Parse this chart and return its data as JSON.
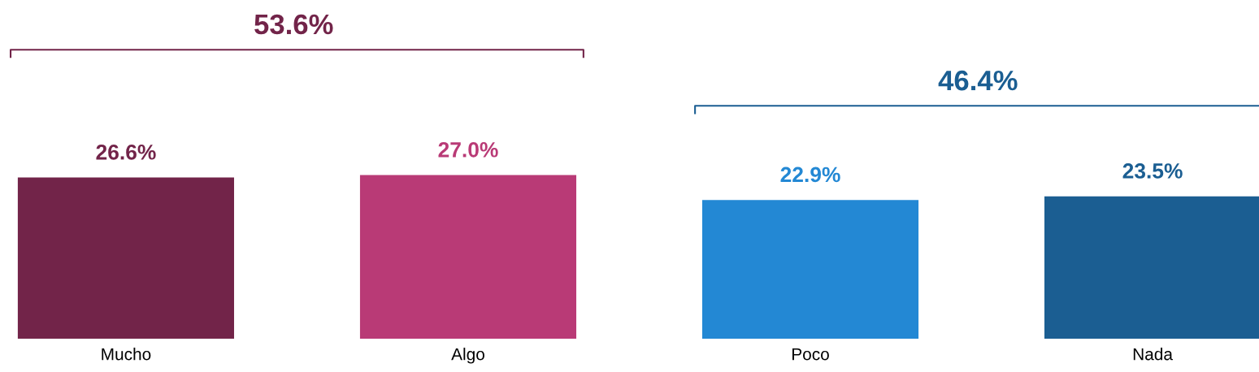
{
  "chart_data": {
    "type": "bar",
    "categories": [
      "Mucho",
      "Algo",
      "Poco",
      "Nada"
    ],
    "values": [
      26.6,
      27.0,
      22.9,
      23.5
    ],
    "colors": [
      "#722449",
      "#b93a76",
      "#2388d4",
      "#1b5e92"
    ],
    "value_labels": [
      "26.6%",
      "27.0%",
      "22.9%",
      "23.5%"
    ],
    "annotations": [
      "53.6%",
      "46.4%"
    ],
    "grid": false,
    "legend": false
  }
}
